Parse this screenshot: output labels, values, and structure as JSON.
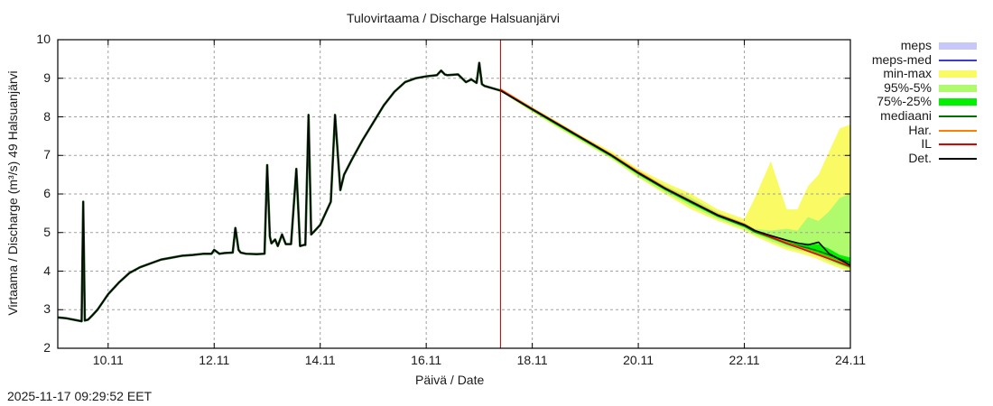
{
  "title": "Tulovirtaama / Discharge  Halsuanjärvi",
  "y_axis_label": "Virtaama / Discharge (m³/s)  49 Halsuanjärvi",
  "x_axis_label": "Päivä / Date",
  "timestamp": "2025-11-17 09:29:52 EET",
  "legend": [
    {
      "label": "meps",
      "color": "#c8c8f8",
      "kind": "band"
    },
    {
      "label": "meps-med",
      "color": "#3c3cd0",
      "kind": "line"
    },
    {
      "label": "min-max",
      "color": "#fafa64",
      "kind": "band"
    },
    {
      "label": "95%-5%",
      "color": "#b0fa6e",
      "kind": "band"
    },
    {
      "label": "75%-25%",
      "color": "#00f000",
      "kind": "band"
    },
    {
      "label": "mediaani",
      "color": "#007000",
      "kind": "line"
    },
    {
      "label": "Har.",
      "color": "#ff8000",
      "kind": "line"
    },
    {
      "label": "IL",
      "color": "#e00000",
      "kind": "line"
    },
    {
      "label": "Det.",
      "color": "#000000",
      "kind": "line"
    }
  ],
  "chart_data": {
    "type": "line",
    "title": "Tulovirtaama / Discharge  Halsuanjärvi",
    "xlabel": "Päivä / Date",
    "ylabel": "Virtaama / Discharge (m³/s)  49 Halsuanjärvi",
    "x_tick_labels": [
      "10.11",
      "12.11",
      "14.11",
      "16.11",
      "18.11",
      "20.11",
      "22.11",
      "24.11"
    ],
    "x_tick_days": [
      10,
      12,
      14,
      16,
      18,
      20,
      22,
      24
    ],
    "y_tick_labels": [
      "2",
      "3",
      "4",
      "5",
      "6",
      "7",
      "8",
      "9",
      "10"
    ],
    "xlim_days": [
      9.05,
      24.0
    ],
    "ylim": [
      2,
      10
    ],
    "grid": true,
    "legend_position": "right-outside",
    "forecast_start_day": 17.4,
    "observed": {
      "name": "Det.",
      "x": [
        9.05,
        9.2,
        9.5,
        9.53,
        9.56,
        9.62,
        9.7,
        9.8,
        9.9,
        10.0,
        10.2,
        10.4,
        10.6,
        10.8,
        11.0,
        11.2,
        11.4,
        11.6,
        11.8,
        11.95,
        12.0,
        12.1,
        12.2,
        12.35,
        12.4,
        12.46,
        12.5,
        12.6,
        12.8,
        12.95,
        13.0,
        13.05,
        13.08,
        13.15,
        13.2,
        13.28,
        13.35,
        13.45,
        13.55,
        13.62,
        13.7,
        13.72,
        13.78,
        13.83,
        13.9,
        14.0,
        14.2,
        14.28,
        14.38,
        14.45,
        14.6,
        14.8,
        15.0,
        15.2,
        15.4,
        15.6,
        15.8,
        16.0,
        16.2,
        16.28,
        16.35,
        16.4,
        16.6,
        16.75,
        16.85,
        16.95,
        17.0,
        17.05,
        17.1,
        17.4
      ],
      "y": [
        2.8,
        2.78,
        2.7,
        5.8,
        2.72,
        2.74,
        2.85,
        3.0,
        3.2,
        3.4,
        3.7,
        3.95,
        4.1,
        4.2,
        4.3,
        4.35,
        4.4,
        4.42,
        4.45,
        4.45,
        4.55,
        4.45,
        4.47,
        4.48,
        5.12,
        4.55,
        4.48,
        4.45,
        4.44,
        4.45,
        6.75,
        4.9,
        4.72,
        4.82,
        4.65,
        4.95,
        4.7,
        4.7,
        6.65,
        4.65,
        4.68,
        4.68,
        8.05,
        4.95,
        5.05,
        5.2,
        5.8,
        8.05,
        6.1,
        6.5,
        6.9,
        7.4,
        7.85,
        8.3,
        8.65,
        8.9,
        9.0,
        9.05,
        9.08,
        9.2,
        9.1,
        9.08,
        9.1,
        8.9,
        8.97,
        8.88,
        9.4,
        8.85,
        8.8,
        8.68
      ]
    },
    "forecast_x": [
      17.4,
      18.0,
      18.5,
      19.0,
      19.5,
      20.0,
      20.5,
      21.0,
      21.5,
      22.0,
      22.2,
      22.5,
      22.8,
      23.0,
      23.2,
      23.4,
      23.6,
      23.8,
      24.0
    ],
    "series": [
      {
        "name": "Det.",
        "values": [
          8.68,
          8.2,
          7.8,
          7.4,
          7.0,
          6.55,
          6.15,
          5.8,
          5.45,
          5.2,
          5.05,
          4.92,
          4.8,
          4.73,
          4.68,
          4.75,
          4.45,
          4.3,
          4.15
        ]
      },
      {
        "name": "IL",
        "values": [
          8.7,
          8.2,
          7.8,
          7.4,
          7.0,
          6.55,
          6.15,
          5.8,
          5.45,
          5.2,
          5.05,
          4.88,
          4.72,
          4.62,
          4.52,
          4.42,
          4.32,
          4.22,
          4.12
        ]
      },
      {
        "name": "Har.",
        "values": [
          8.72,
          8.22,
          7.82,
          7.42,
          7.02,
          6.58,
          6.17,
          5.82,
          5.47,
          5.22,
          5.06,
          4.9,
          4.74,
          4.64,
          4.54,
          4.44,
          4.34,
          4.24,
          4.14
        ]
      },
      {
        "name": "mediaani",
        "values": [
          8.68,
          8.18,
          7.78,
          7.38,
          6.98,
          6.53,
          6.13,
          5.78,
          5.43,
          5.17,
          5.02,
          4.88,
          4.74,
          4.66,
          4.6,
          4.52,
          4.42,
          4.32,
          4.22
        ]
      }
    ],
    "bands": [
      {
        "name": "min-max",
        "upper": [
          8.72,
          8.25,
          7.85,
          7.45,
          7.1,
          6.65,
          6.3,
          6.0,
          5.6,
          5.35,
          5.9,
          6.85,
          5.6,
          5.6,
          6.2,
          6.5,
          7.1,
          7.7,
          7.8
        ],
        "lower": [
          8.66,
          8.12,
          7.7,
          7.3,
          6.9,
          6.42,
          6.0,
          5.6,
          5.3,
          5.05,
          4.9,
          4.72,
          4.55,
          4.48,
          4.4,
          4.3,
          4.18,
          4.08,
          3.98
        ]
      },
      {
        "name": "95%-5%",
        "upper": [
          8.71,
          8.22,
          7.82,
          7.42,
          7.05,
          6.6,
          6.22,
          5.9,
          5.52,
          5.25,
          5.1,
          5.05,
          5.1,
          5.05,
          5.4,
          5.3,
          5.55,
          5.9,
          6.0
        ],
        "lower": [
          8.66,
          8.14,
          7.72,
          7.32,
          6.92,
          6.45,
          6.05,
          5.68,
          5.35,
          5.1,
          4.95,
          4.78,
          4.62,
          4.55,
          4.48,
          4.38,
          4.25,
          4.15,
          4.05
        ]
      },
      {
        "name": "75%-25%",
        "upper": [
          8.7,
          8.2,
          7.8,
          7.4,
          7.0,
          6.56,
          6.17,
          5.82,
          5.47,
          5.22,
          5.06,
          4.92,
          4.8,
          4.74,
          4.72,
          4.7,
          4.58,
          4.42,
          4.35
        ]
      },
      {
        "name": "75%-25%-lower",
        "upper": [
          8.67,
          8.16,
          7.75,
          7.35,
          6.95,
          6.5,
          6.1,
          5.74,
          5.4,
          5.14,
          4.99,
          4.84,
          4.68,
          4.6,
          4.52,
          4.42,
          4.3,
          4.18,
          4.08
        ]
      }
    ]
  }
}
